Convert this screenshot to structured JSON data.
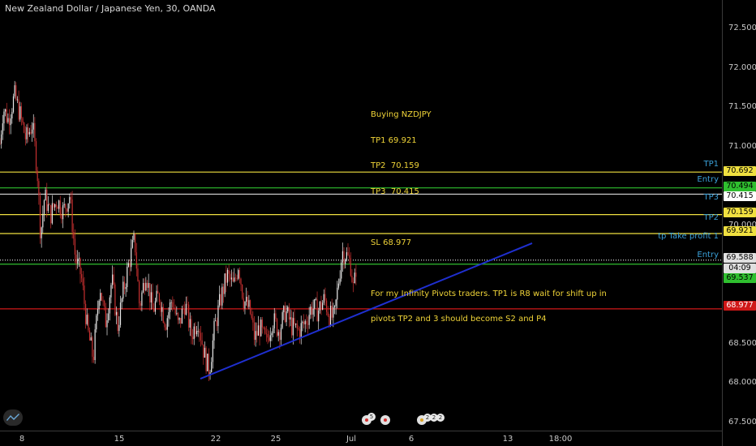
{
  "header": {
    "symbol_title": "New Zealand Dollar / Japanese Yen, 30, OANDA"
  },
  "annotation": {
    "lines": [
      "Buying NZDJPY",
      "TP1 69.921",
      "TP2  70.159",
      "TP3  70.415",
      "",
      "SL 68.977",
      "",
      "For my Infinity Pivots traders. TP1 is R8 wait for shift up in",
      "pivots TP2 and 3 should become S2 and P4"
    ]
  },
  "colors": {
    "background": "#000000",
    "candle_up": "#e8e8e8",
    "candle_down": "#c83030",
    "yellow_line": "#f0e040",
    "green_line": "#2fbf2f",
    "white_line": "#d8d8d8",
    "red_line": "#d01818",
    "trendline": "#1f2fd0",
    "label_blue": "#3aa0d8"
  },
  "y_axis": {
    "ticks": [
      "72.500",
      "72.000",
      "71.500",
      "71.000",
      "70.000",
      "68.500",
      "68.000",
      "67.500"
    ]
  },
  "x_axis": {
    "ticks": [
      "8",
      "15",
      "22",
      "25",
      "Jul",
      "6",
      "13",
      "18:00"
    ]
  },
  "price_tags": [
    {
      "text": "70.692",
      "bg": "#f0e040",
      "fg": "#000000"
    },
    {
      "text": "70.494",
      "bg": "#2fbf2f",
      "fg": "#000000"
    },
    {
      "text": "70.415",
      "bg": "#ffffff",
      "fg": "#000000"
    },
    {
      "text": "70.159",
      "bg": "#f0e040",
      "fg": "#000000"
    },
    {
      "text": "69.921",
      "bg": "#f0e040",
      "fg": "#000000"
    },
    {
      "text": "69.588",
      "bg": "#e0e0e0",
      "fg": "#000000"
    },
    {
      "text": "04:09",
      "bg": "#e0e0e0",
      "fg": "#000000"
    },
    {
      "text": "69.537",
      "bg": "#2fbf2f",
      "fg": "#000000"
    },
    {
      "text": "68.977",
      "bg": "#d01818",
      "fg": "#ffffff"
    }
  ],
  "line_labels": [
    "TP1",
    "Entry",
    "TP3",
    "TP2",
    "tp Take profit 1",
    "Entry"
  ],
  "events": {
    "badge_count_a": "5",
    "badge_count_b": "2",
    "badge_count_c": "2",
    "badge_count_d": "2"
  },
  "chart_data": {
    "type": "candlestick",
    "title": "New Zealand Dollar / Japanese Yen, 30, OANDA",
    "ylim": [
      67.45,
      72.85
    ],
    "y_ticks": [
      67.5,
      68.0,
      68.5,
      70.0,
      71.0,
      71.5,
      72.0,
      72.5
    ],
    "x_ticks": [
      "8",
      "15",
      "22",
      "25",
      "Jul",
      "6",
      "13",
      "18:00"
    ],
    "price_path": [
      [
        0,
        71.05
      ],
      [
        4,
        71.5
      ],
      [
        10,
        71.35
      ],
      [
        18,
        71.65
      ],
      [
        25,
        71.4
      ],
      [
        32,
        71.1
      ],
      [
        40,
        71.3
      ],
      [
        46,
        70.7
      ],
      [
        50,
        69.9
      ],
      [
        55,
        70.4
      ],
      [
        62,
        70.15
      ],
      [
        70,
        70.35
      ],
      [
        78,
        70.2
      ],
      [
        86,
        70.4
      ],
      [
        93,
        69.6
      ],
      [
        100,
        69.4
      ],
      [
        108,
        68.7
      ],
      [
        115,
        68.35
      ],
      [
        123,
        69.3
      ],
      [
        130,
        68.8
      ],
      [
        138,
        69.35
      ],
      [
        145,
        68.75
      ],
      [
        152,
        69.2
      ],
      [
        160,
        69.6
      ],
      [
        166,
        69.85
      ],
      [
        172,
        69.0
      ],
      [
        180,
        69.45
      ],
      [
        188,
        68.95
      ],
      [
        196,
        69.15
      ],
      [
        204,
        68.8
      ],
      [
        212,
        69.1
      ],
      [
        220,
        68.75
      ],
      [
        228,
        69.05
      ],
      [
        236,
        68.65
      ],
      [
        244,
        68.85
      ],
      [
        252,
        68.4
      ],
      [
        258,
        68.2
      ],
      [
        264,
        68.7
      ],
      [
        272,
        69.1
      ],
      [
        280,
        69.4
      ],
      [
        288,
        69.25
      ],
      [
        294,
        69.55
      ],
      [
        300,
        69.1
      ],
      [
        308,
        68.95
      ],
      [
        314,
        68.6
      ],
      [
        320,
        68.75
      ],
      [
        328,
        68.55
      ],
      [
        336,
        68.85
      ],
      [
        344,
        68.7
      ],
      [
        352,
        68.95
      ],
      [
        360,
        68.75
      ],
      [
        368,
        68.7
      ],
      [
        376,
        68.8
      ],
      [
        384,
        69.0
      ],
      [
        392,
        68.95
      ],
      [
        400,
        69.1
      ],
      [
        406,
        68.9
      ],
      [
        412,
        68.85
      ],
      [
        417,
        69.3
      ],
      [
        422,
        69.7
      ],
      [
        427,
        69.65
      ],
      [
        432,
        69.55
      ],
      [
        436,
        69.2
      ],
      [
        440,
        69.6
      ]
    ],
    "horizontal_lines": [
      {
        "label": "TP1",
        "value": 70.692,
        "color": "#f0e040"
      },
      {
        "label": "Entry",
        "value": 70.494,
        "color": "#2fbf2f"
      },
      {
        "label": "TP3",
        "value": 70.415,
        "color": "#d8d8d8"
      },
      {
        "label": "TP2",
        "value": 70.159,
        "color": "#f0e040"
      },
      {
        "label": "tp Take profit 1",
        "value": 69.921,
        "color": "#f0e040"
      },
      {
        "label": "",
        "value": 69.588,
        "color": "#d8d8d8",
        "dashed": true
      },
      {
        "label": "Entry",
        "value": 69.537,
        "color": "#2fbf2f"
      },
      {
        "label": "",
        "value": 68.977,
        "color": "#d01818"
      }
    ],
    "trendline": {
      "from": [
        247,
        68.1
      ],
      "to": [
        656,
        69.8
      ],
      "color": "#1f2fd0"
    }
  }
}
